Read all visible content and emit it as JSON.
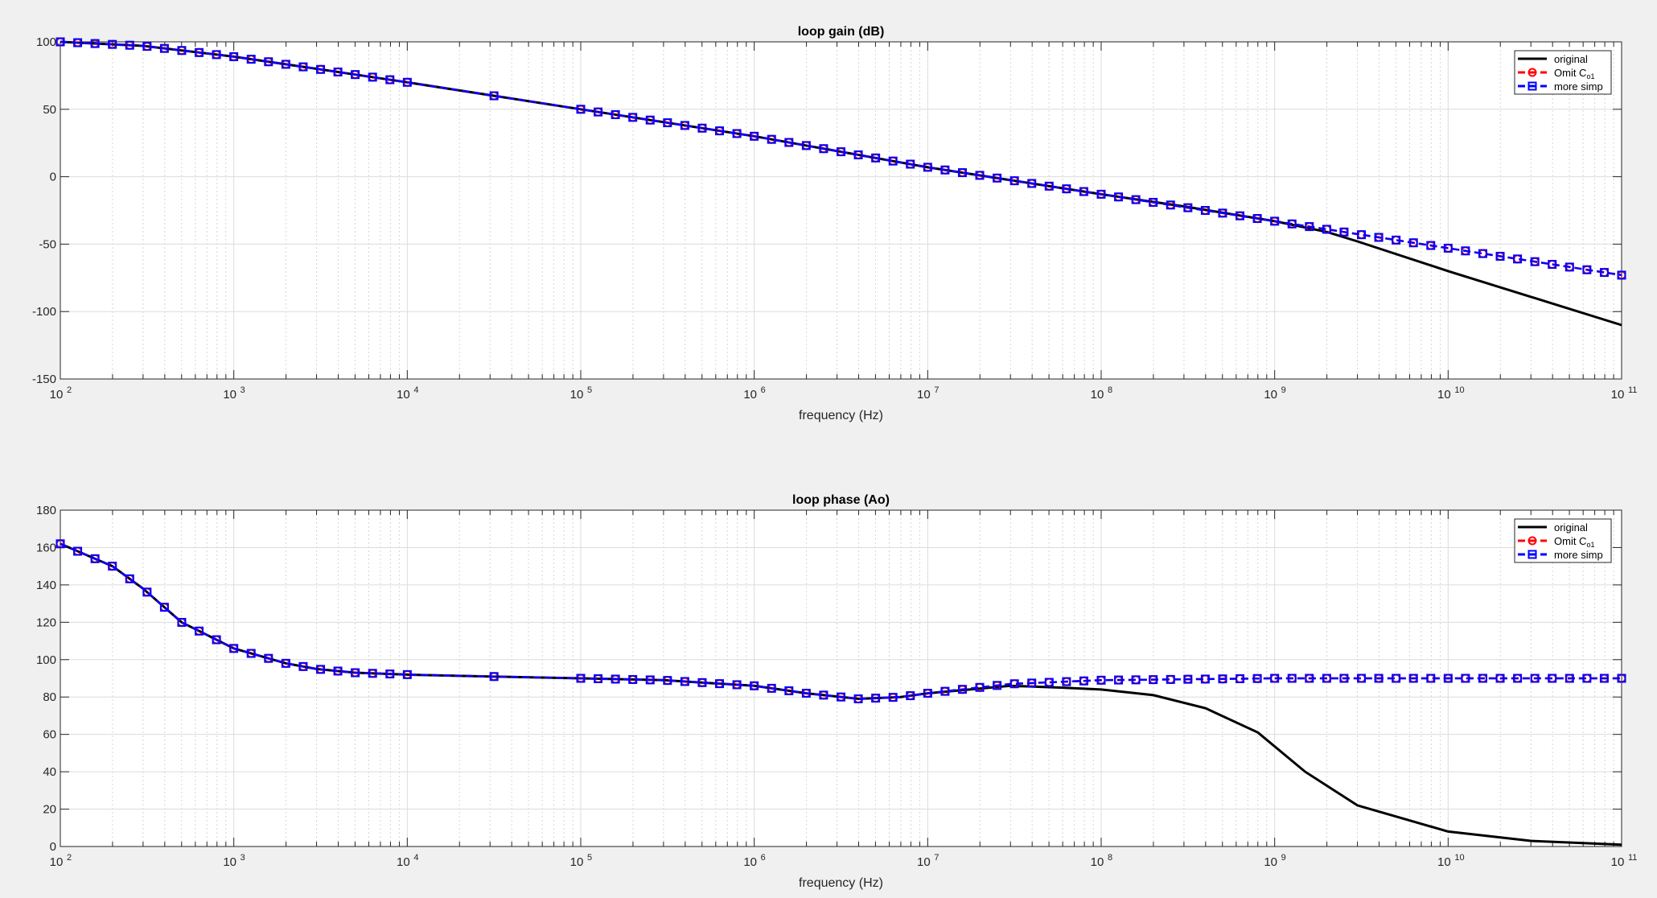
{
  "chart_data": [
    {
      "type": "line",
      "title": "loop gain (dB)",
      "xlabel": "frequency (Hz)",
      "ylabel": "",
      "x_scale": "log",
      "xlim": [
        100,
        100000000000
      ],
      "ylim": [
        -150,
        100
      ],
      "x_tick_labels": [
        "10",
        "10",
        "10",
        "10",
        "10",
        "10",
        "10",
        "10",
        "10",
        "10"
      ],
      "x_tick_exponents": [
        "2",
        "3",
        "4",
        "5",
        "6",
        "7",
        "8",
        "9",
        "10",
        "11"
      ],
      "y_ticks": [
        -150,
        -100,
        -50,
        0,
        50,
        100
      ],
      "y_tick_labels": [
        "-150",
        "-100",
        "-50",
        "0",
        "50",
        "100"
      ],
      "grid": true,
      "legend_position": "top-right",
      "series": [
        {
          "name": "original",
          "color": "#000000",
          "marker": "none",
          "x": [
            100,
            300,
            1000,
            3000,
            10000,
            100000,
            1000000,
            10000000,
            100000000,
            300000000,
            1000000000,
            2000000000,
            3000000000,
            10000000000,
            100000000000
          ],
          "y": [
            100,
            97,
            89,
            80,
            70,
            50,
            30,
            7,
            -13,
            -22,
            -33,
            -41,
            -48,
            -70,
            -110
          ]
        },
        {
          "name": "Omit  C",
          "name_subscript": "o1",
          "color": "#ff0000",
          "marker": "circle",
          "x": [
            100,
            300,
            1000,
            3000,
            10000,
            100000,
            1000000,
            10000000,
            100000000,
            1000000000,
            10000000000,
            100000000000
          ],
          "y": [
            100,
            97,
            89,
            80,
            70,
            50,
            30,
            7,
            -13,
            -33,
            -53,
            -73
          ]
        },
        {
          "name": "more simp",
          "color": "#0000ff",
          "marker": "square",
          "x": [
            100,
            300,
            1000,
            3000,
            10000,
            100000,
            1000000,
            10000000,
            100000000,
            1000000000,
            10000000000,
            100000000000
          ],
          "y": [
            100,
            97,
            89,
            80,
            70,
            50,
            30,
            7,
            -13,
            -33,
            -53,
            -73
          ]
        }
      ]
    },
    {
      "type": "line",
      "title": "loop phase (Ao)",
      "xlabel": "frequency (Hz)",
      "ylabel": "",
      "x_scale": "log",
      "xlim": [
        100,
        100000000000
      ],
      "ylim": [
        0,
        180
      ],
      "x_tick_labels": [
        "10",
        "10",
        "10",
        "10",
        "10",
        "10",
        "10",
        "10",
        "10",
        "10"
      ],
      "x_tick_exponents": [
        "2",
        "3",
        "4",
        "5",
        "6",
        "7",
        "8",
        "9",
        "10",
        "11"
      ],
      "y_ticks": [
        0,
        20,
        40,
        60,
        80,
        100,
        120,
        140,
        160,
        180
      ],
      "y_tick_labels": [
        "0",
        "20",
        "40",
        "60",
        "80",
        "100",
        "120",
        "140",
        "160",
        "180"
      ],
      "grid": true,
      "legend_position": "top-right",
      "series": [
        {
          "name": "original",
          "color": "#000000",
          "marker": "none",
          "x": [
            100,
            200,
            300,
            500,
            1000,
            2000,
            3000,
            5000,
            10000,
            30000,
            100000,
            300000,
            1000000,
            2000000,
            4000000,
            7000000,
            10000000,
            30000000,
            60000000,
            100000000,
            200000000,
            400000000,
            800000000,
            1500000000,
            3000000000,
            10000000000,
            30000000000,
            100000000000
          ],
          "y": [
            162,
            150,
            138,
            120,
            106,
            98,
            95,
            93,
            92,
            91,
            90,
            89,
            86,
            82,
            79,
            80,
            82,
            86,
            85,
            84,
            81,
            74,
            61,
            40,
            22,
            8,
            3,
            1
          ]
        },
        {
          "name": "Omit  C",
          "name_subscript": "o1",
          "color": "#ff0000",
          "marker": "circle",
          "x": [
            100,
            200,
            300,
            500,
            1000,
            2000,
            3000,
            5000,
            10000,
            30000,
            100000,
            300000,
            1000000,
            2000000,
            4000000,
            7000000,
            10000000,
            30000000,
            100000000,
            1000000000,
            10000000000,
            100000000000
          ],
          "y": [
            162,
            150,
            138,
            120,
            106,
            98,
            95,
            93,
            92,
            91,
            90,
            89,
            86,
            82,
            79,
            80,
            82,
            87,
            89,
            90,
            90,
            90
          ]
        },
        {
          "name": "more simp",
          "color": "#0000ff",
          "marker": "square",
          "x": [
            100,
            200,
            300,
            500,
            1000,
            2000,
            3000,
            5000,
            10000,
            30000,
            100000,
            300000,
            1000000,
            2000000,
            4000000,
            7000000,
            10000000,
            30000000,
            100000000,
            1000000000,
            10000000000,
            100000000000
          ],
          "y": [
            162,
            150,
            138,
            120,
            106,
            98,
            95,
            93,
            92,
            91,
            90,
            89,
            86,
            82,
            79,
            80,
            82,
            87,
            89,
            90,
            90,
            90
          ]
        }
      ]
    }
  ]
}
